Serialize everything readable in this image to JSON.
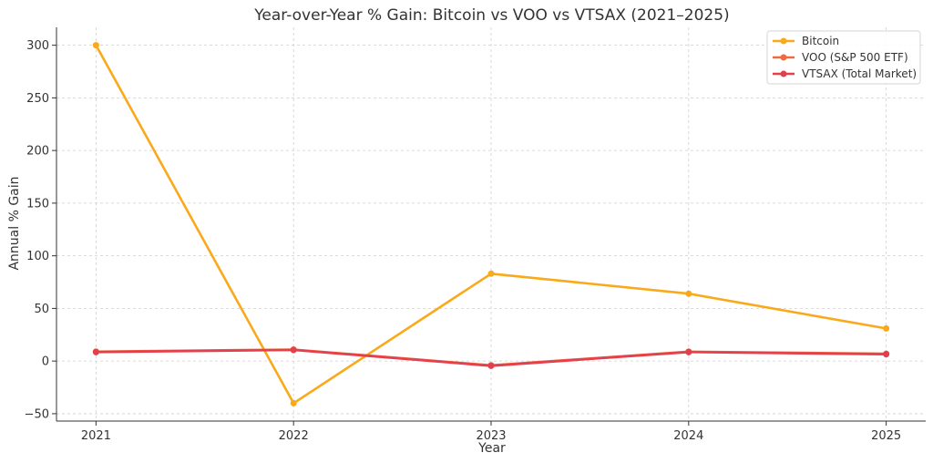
{
  "chart_data": {
    "type": "line",
    "title": "Year-over-Year % Gain: Bitcoin vs VOO vs VTSAX (2021–2025)",
    "xlabel": "Year",
    "ylabel": "Annual % Gain",
    "x": [
      2021,
      2022,
      2023,
      2024,
      2025
    ],
    "x_tick_labels": [
      "2021",
      "2022",
      "2023",
      "2024",
      "2025"
    ],
    "xlim": [
      2020.8,
      2025.2
    ],
    "ylim": [
      -57,
      317
    ],
    "y_ticks": [
      -50,
      0,
      50,
      100,
      150,
      200,
      250,
      300
    ],
    "y_tick_labels": [
      "−50",
      "0",
      "50",
      "100",
      "150",
      "200",
      "250",
      "300"
    ],
    "grid": true,
    "legend_position": "top-right",
    "series": [
      {
        "name": "Bitcoin",
        "color": "#F9A919",
        "values": [
          300,
          -40,
          83,
          64,
          31
        ]
      },
      {
        "name": "VOO (S&P 500 ETF)",
        "color": "#EE6A3F",
        "values": [
          9,
          11,
          -4,
          9,
          7
        ]
      },
      {
        "name": "VTSAX (Total Market)",
        "color": "#E43F4C",
        "values": [
          8.5,
          10.5,
          -4.5,
          8.5,
          6.5
        ]
      }
    ]
  }
}
